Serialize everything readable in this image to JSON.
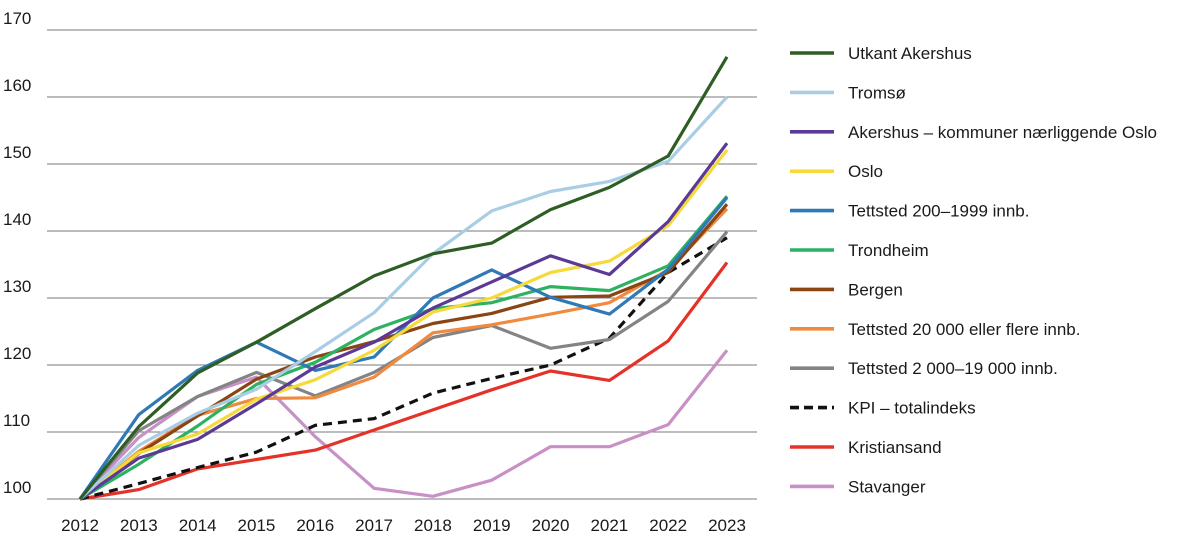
{
  "chart_data": {
    "type": "line",
    "title": "",
    "xlabel": "",
    "ylabel": "",
    "ylim": [
      100,
      170
    ],
    "yticks": [
      100,
      110,
      120,
      130,
      140,
      150,
      160,
      170
    ],
    "grid": true,
    "legend_position": "right",
    "x": [
      "2012",
      "2013",
      "2014",
      "2015",
      "2016",
      "2017",
      "2018",
      "2019",
      "2020",
      "2021",
      "2022",
      "2023"
    ],
    "series": [
      {
        "name": "Utkant Akershus",
        "color": "#2e5e24",
        "dashed": false,
        "values": [
          100,
          110.8,
          118.8,
          123.4,
          128.4,
          133.3,
          136.6,
          138.2,
          143.2,
          146.5,
          151.2,
          166.0
        ]
      },
      {
        "name": "Tromsø",
        "color": "#a9cde4",
        "dashed": false,
        "values": [
          100,
          108.0,
          112.8,
          116.4,
          122.0,
          127.8,
          136.6,
          143.0,
          145.9,
          147.4,
          150.4,
          160.0
        ]
      },
      {
        "name": "Akershus – kommuner nærliggende Oslo",
        "color": "#5b3a96",
        "dashed": false,
        "values": [
          100,
          106.1,
          108.9,
          114.2,
          119.7,
          123.4,
          128.5,
          132.4,
          136.3,
          133.5,
          141.4,
          153.1
        ]
      },
      {
        "name": "Oslo",
        "color": "#f7d93a",
        "dashed": false,
        "values": [
          100,
          106.9,
          109.7,
          114.9,
          117.8,
          122.2,
          127.9,
          130.0,
          133.8,
          135.5,
          140.8,
          152.1
        ]
      },
      {
        "name": "Tettsted 200–1999 innb.",
        "color": "#2e79b6",
        "dashed": false,
        "values": [
          100,
          112.6,
          119.2,
          123.4,
          119.2,
          121.2,
          130.0,
          134.2,
          130.1,
          127.6,
          134.3,
          145.0
        ]
      },
      {
        "name": "Trondheim",
        "color": "#2cb260",
        "dashed": false,
        "values": [
          100,
          105.2,
          110.9,
          117.1,
          120.4,
          125.3,
          128.4,
          129.3,
          131.7,
          131.1,
          134.8,
          145.2
        ]
      },
      {
        "name": "Bergen",
        "color": "#8b4513",
        "dashed": false,
        "values": [
          100,
          106.8,
          112.4,
          117.9,
          121.2,
          123.5,
          126.2,
          127.7,
          130.1,
          130.3,
          133.8,
          144.0
        ]
      },
      {
        "name": "Tettsted 20 000 eller flere innb.",
        "color": "#f08a3e",
        "dashed": false,
        "values": [
          100,
          107.1,
          112.5,
          115.0,
          115.1,
          118.2,
          124.8,
          126.0,
          127.6,
          129.3,
          134.2,
          143.3
        ]
      },
      {
        "name": "Tettsted 2 000–19 000 innb.",
        "color": "#848484",
        "dashed": false,
        "values": [
          100,
          110.2,
          115.3,
          118.9,
          115.4,
          118.9,
          124.1,
          125.9,
          122.5,
          123.8,
          129.5,
          139.9
        ]
      },
      {
        "name": "KPI – totalindeks",
        "color": "#111111",
        "dashed": true,
        "values": [
          100,
          102.3,
          104.7,
          107.0,
          111.0,
          112.0,
          115.8,
          118.0,
          120.0,
          124.0,
          133.8,
          139.0
        ]
      },
      {
        "name": "Kristiansand",
        "color": "#e53228",
        "dashed": false,
        "values": [
          100,
          101.4,
          104.5,
          105.9,
          107.3,
          110.3,
          113.3,
          116.3,
          119.1,
          117.7,
          123.6,
          135.3
        ]
      },
      {
        "name": "Stavanger",
        "color": "#c890c6",
        "dashed": false,
        "values": [
          100,
          109.2,
          115.3,
          118.2,
          109.3,
          101.6,
          100.4,
          102.8,
          107.8,
          107.8,
          111.1,
          122.2
        ]
      }
    ]
  }
}
